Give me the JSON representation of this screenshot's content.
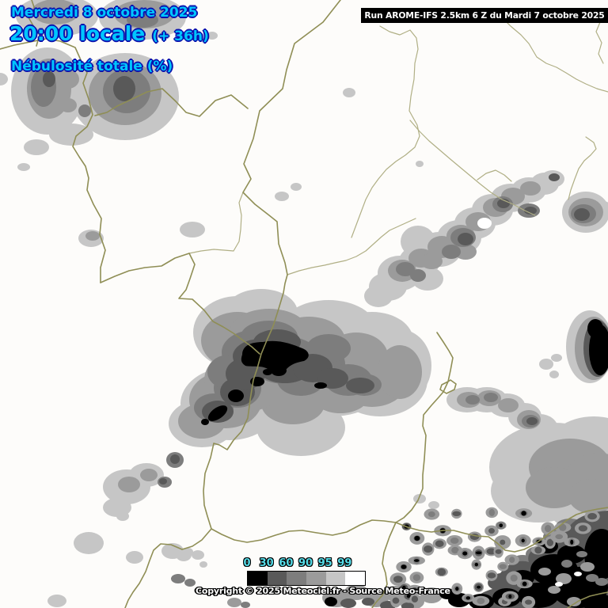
{
  "header": {
    "date_line": "Mercredi 8 octobre 2025",
    "time_line": "20:00 locale",
    "time_offset": "(+ 36h)",
    "variable_line": "Nébulosité totale (%)",
    "text_color": "#00c6ff",
    "outline_color": "#0a12ae"
  },
  "run_info": {
    "label": "Run AROME-IFS 2.5km 6 Z du Mardi 7 octobre 2025",
    "bg_color": "#000000",
    "text_color": "#ffffff"
  },
  "legend": {
    "unit": "%",
    "label_color": "#55dce8",
    "stops": [
      {
        "label": "0",
        "color": "#000000"
      },
      {
        "label": "30",
        "color": "#595959"
      },
      {
        "label": "60",
        "color": "#7d7d7d"
      },
      {
        "label": "90",
        "color": "#9b9b9b"
      },
      {
        "label": "95",
        "color": "#c6c6c6"
      },
      {
        "label": "99",
        "color": "#ffffff"
      }
    ]
  },
  "copyright": "Copyright © 2025 Meteociel.fr - Source Meteo-France",
  "map": {
    "background": "#fdfcfa",
    "country_border_color": "#8f8e55",
    "region_border_color": "#b0af85"
  }
}
